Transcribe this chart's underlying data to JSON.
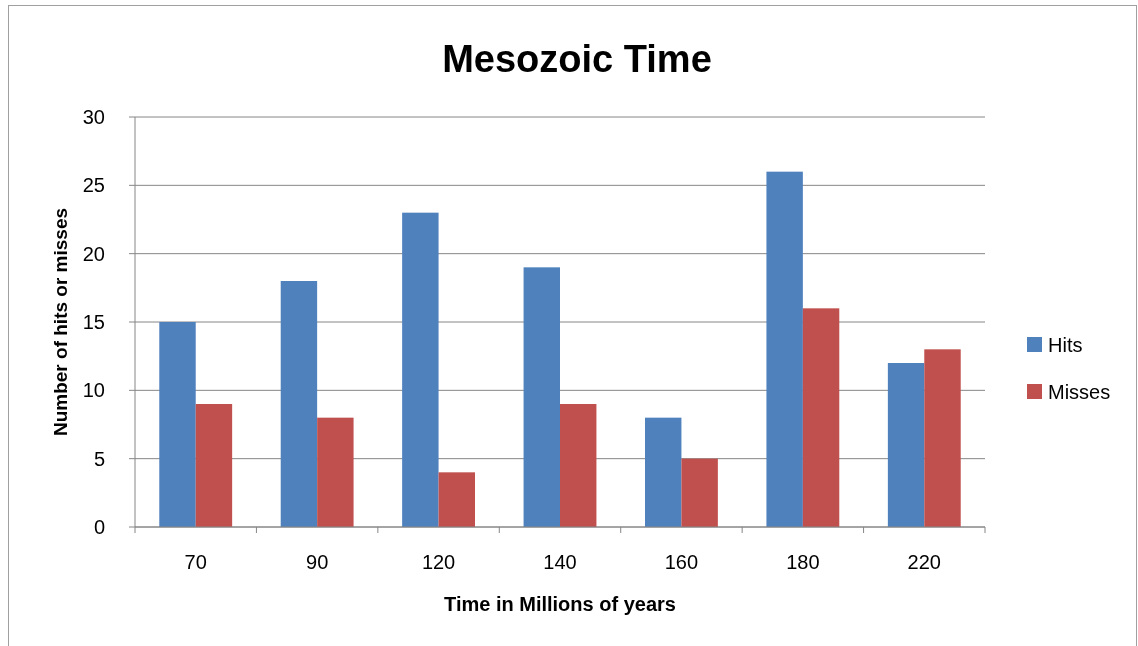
{
  "chart_data": {
    "type": "bar",
    "title": "Mesozoic Time",
    "xlabel": "Time in Millions of years",
    "ylabel": "Number of hits or misses",
    "categories": [
      "70",
      "90",
      "120",
      "140",
      "160",
      "180",
      "220"
    ],
    "series": [
      {
        "name": "Hits",
        "color": "#4f81bd",
        "values": [
          15,
          18,
          23,
          19,
          8,
          26,
          12
        ]
      },
      {
        "name": "Misses",
        "color": "#c0504d",
        "values": [
          9,
          8,
          4,
          9,
          5,
          16,
          13
        ]
      }
    ],
    "ylim": [
      0,
      30
    ],
    "yticks": [
      0,
      5,
      10,
      15,
      20,
      25,
      30
    ],
    "grid": "y",
    "legend": "right"
  }
}
